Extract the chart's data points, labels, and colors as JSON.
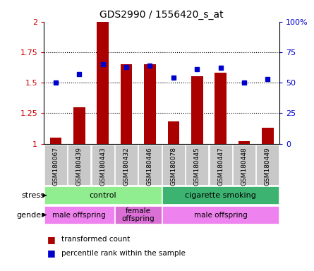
{
  "title": "GDS2990 / 1556420_s_at",
  "samples": [
    "GSM180067",
    "GSM180439",
    "GSM180443",
    "GSM180432",
    "GSM180446",
    "GSM180078",
    "GSM180445",
    "GSM180447",
    "GSM180448",
    "GSM180449"
  ],
  "red_values": [
    1.05,
    1.3,
    2.0,
    1.65,
    1.65,
    1.18,
    1.55,
    1.58,
    1.02,
    1.13
  ],
  "blue_values": [
    50,
    57,
    65,
    63,
    64,
    54,
    61,
    62,
    50,
    53
  ],
  "ylim_left": [
    1.0,
    2.0
  ],
  "ylim_right": [
    0,
    100
  ],
  "yticks_left": [
    1.0,
    1.25,
    1.5,
    1.75,
    2.0
  ],
  "yticks_right": [
    0,
    25,
    50,
    75,
    100
  ],
  "ytick_labels_left": [
    "1",
    "1.25",
    "1.5",
    "1.75",
    "2"
  ],
  "ytick_labels_right": [
    "0",
    "25",
    "50",
    "75",
    "100%"
  ],
  "stress_groups": [
    {
      "label": "control",
      "start": 0,
      "end": 5,
      "color": "#90EE90"
    },
    {
      "label": "cigarette smoking",
      "start": 5,
      "end": 10,
      "color": "#3CB371"
    }
  ],
  "gender_groups": [
    {
      "label": "male offspring",
      "start": 0,
      "end": 3,
      "color": "#EE82EE"
    },
    {
      "label": "female\noffspring",
      "start": 3,
      "end": 5,
      "color": "#DA70D6"
    },
    {
      "label": "male offspring",
      "start": 5,
      "end": 10,
      "color": "#EE82EE"
    }
  ],
  "bar_color": "#AA0000",
  "dot_color": "#0000CC",
  "tick_bg_color": "#C8C8C8",
  "left_axis_color": "#CC0000",
  "right_axis_color": "#0000CC",
  "figsize": [
    4.45,
    3.84
  ],
  "dpi": 100
}
